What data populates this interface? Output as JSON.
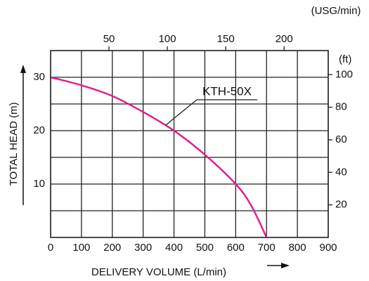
{
  "chart_data": {
    "type": "line",
    "xlabel": "DELIVERY VOLUME (L/min)",
    "ylabel": "TOTAL HEAD (m)",
    "x": [
      0,
      100,
      200,
      300,
      400,
      500,
      600,
      650,
      700
    ],
    "series": [
      {
        "name": "KTH-50X",
        "color": "#e0218a",
        "values": [
          30,
          28.5,
          26.5,
          23.5,
          20,
          15.5,
          10,
          6,
          0
        ]
      }
    ],
    "xlim": [
      0,
      900
    ],
    "xticks": [
      0,
      100,
      200,
      300,
      400,
      500,
      600,
      700,
      800,
      900
    ],
    "ylim": [
      0,
      35
    ],
    "yticks": [
      10,
      20,
      30
    ],
    "grid": {
      "y": [
        0,
        5,
        10,
        15,
        20,
        25,
        30,
        35
      ]
    },
    "x2label": "(USG/min)",
    "x2lim": [
      0,
      237.8
    ],
    "x2ticks": [
      50,
      100,
      150,
      200
    ],
    "y2label": "(ft)",
    "y2lim": [
      0,
      114.8
    ],
    "y2ticks": [
      20,
      40,
      60,
      80,
      100
    ]
  }
}
